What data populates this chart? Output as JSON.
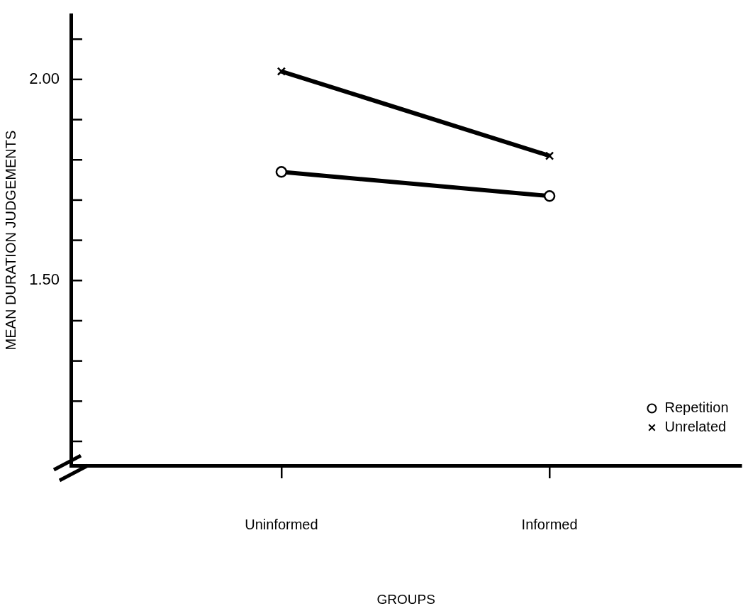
{
  "chart_data": {
    "type": "line",
    "xlabel": "GROUPS",
    "ylabel": "MEAN DURATION JUDGEMENTS",
    "categories": [
      "Uninformed",
      "Informed"
    ],
    "series": [
      {
        "name": "Repetition",
        "color": "#000000",
        "marker": "circle",
        "values": [
          1.77,
          1.71
        ]
      },
      {
        "name": "Unrelated",
        "color": "#000000",
        "marker": "cross",
        "values": [
          2.02,
          1.81
        ]
      }
    ],
    "ylim": [
      1.04,
      2.16
    ],
    "yticks": [
      {
        "value": 1.1,
        "label": null
      },
      {
        "value": 1.2,
        "label": null
      },
      {
        "value": 1.3,
        "label": null
      },
      {
        "value": 1.4,
        "label": null
      },
      {
        "value": 1.5,
        "label": "1.50"
      },
      {
        "value": 1.6,
        "label": null
      },
      {
        "value": 1.7,
        "label": null
      },
      {
        "value": 1.8,
        "label": null
      },
      {
        "value": 1.9,
        "label": null
      },
      {
        "value": 2.0,
        "label": "2.00"
      },
      {
        "value": 2.1,
        "label": null
      }
    ],
    "grid": false,
    "legend": "bottom right",
    "line_style": "solid"
  }
}
